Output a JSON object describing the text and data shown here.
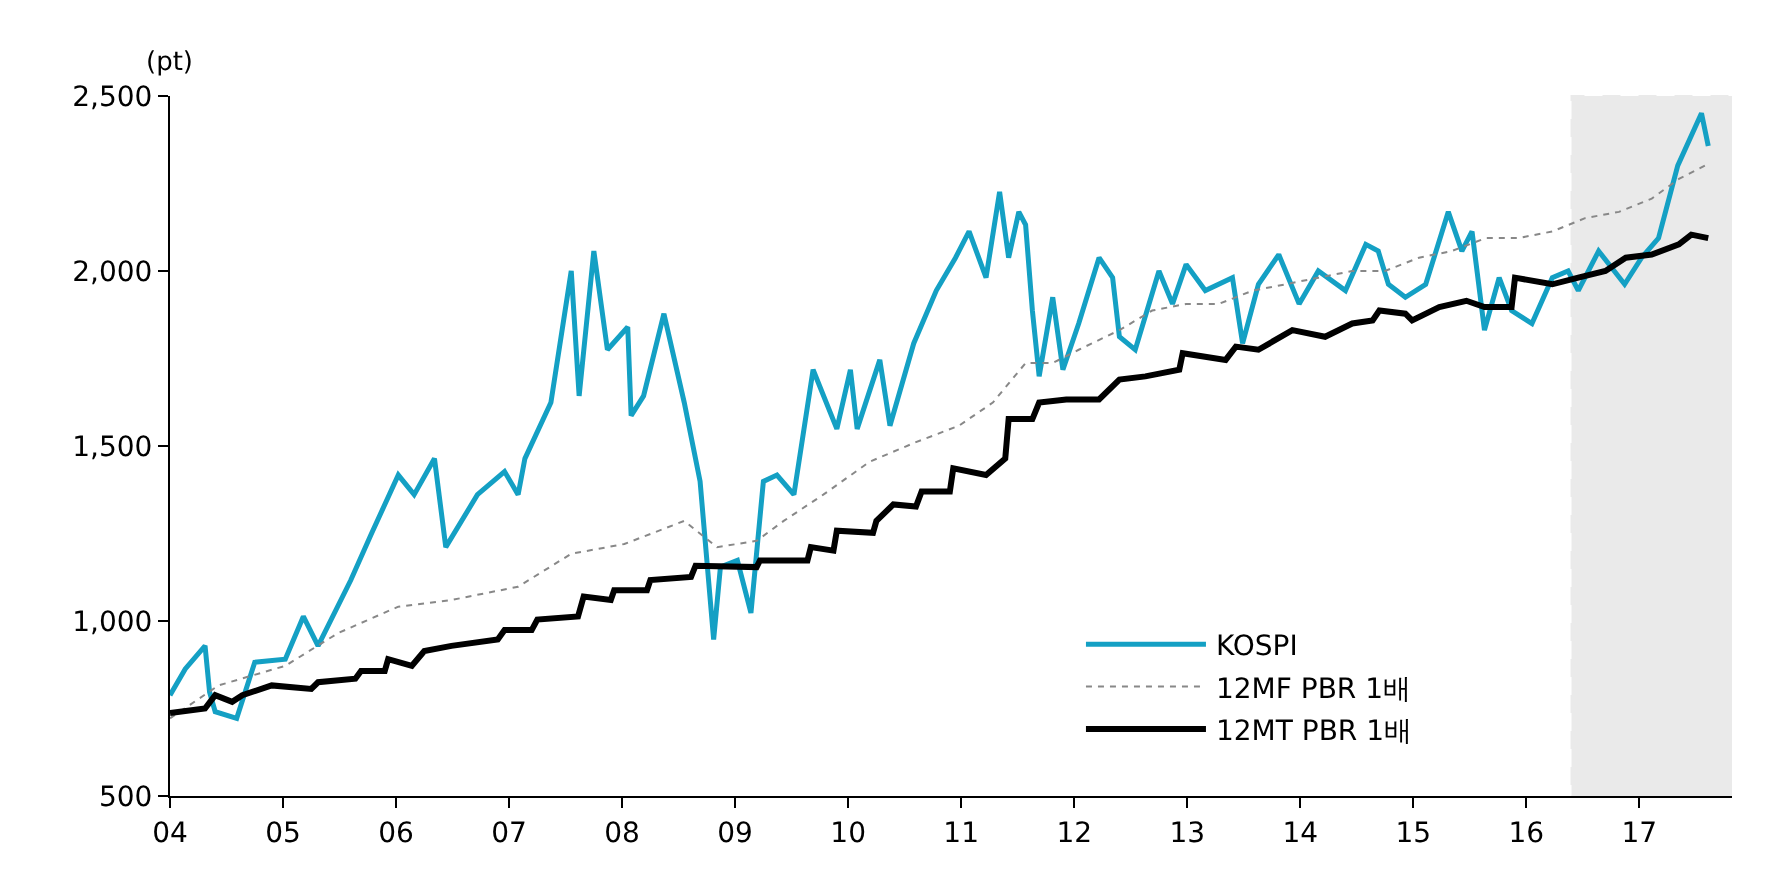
{
  "chart_data": {
    "type": "line",
    "ylabel": "(pt)",
    "xlim": [
      2004,
      2017.82
    ],
    "xticks": [
      {
        "value": 2004,
        "label": "04"
      },
      {
        "value": 2005,
        "label": "05"
      },
      {
        "value": 2006,
        "label": "06"
      },
      {
        "value": 2007,
        "label": "07"
      },
      {
        "value": 2008,
        "label": "08"
      },
      {
        "value": 2009,
        "label": "09"
      },
      {
        "value": 2010,
        "label": "10"
      },
      {
        "value": 2011,
        "label": "11"
      },
      {
        "value": 2012,
        "label": "12"
      },
      {
        "value": 2013,
        "label": "13"
      },
      {
        "value": 2014,
        "label": "14"
      },
      {
        "value": 2015,
        "label": "15"
      },
      {
        "value": 2016,
        "label": "16"
      },
      {
        "value": 2017,
        "label": "17"
      }
    ],
    "ylim": [
      500,
      2500
    ],
    "yticks": [
      500,
      {
        "value": 1000,
        "label": "1,000"
      },
      {
        "value": 1500,
        "label": "1,500"
      },
      {
        "value": 2000,
        "label": "2,000"
      },
      {
        "value": 2500,
        "label": "2,500"
      }
    ],
    "grid": false,
    "legend": "bottom right",
    "bands": [
      {
        "axis": "x",
        "from": 2016.4,
        "to": 2017.82,
        "color": "#000000"
      }
    ],
    "series": [
      {
        "name": "KOSPI",
        "color": "#14a0c4",
        "line_style": "solid",
        "x": [
          2004.0,
          2004.135,
          2004.31,
          2004.35,
          2004.4,
          2004.59,
          2004.75,
          2005.02,
          2005.18,
          2005.31,
          2005.6,
          2005.78,
          2006.02,
          2006.16,
          2006.34,
          2006.44,
          2006.72,
          2006.96,
          2007.08,
          2007.14,
          2007.37,
          2007.55,
          2007.62,
          2007.75,
          2007.87,
          2008.05,
          2008.08,
          2008.19,
          2008.37,
          2008.55,
          2008.69,
          2008.81,
          2008.87,
          2009.02,
          2009.14,
          2009.25,
          2009.37,
          2009.52,
          2009.69,
          2009.9,
          2010.02,
          2010.08,
          2010.28,
          2010.37,
          2010.58,
          2010.78,
          2010.95,
          2011.07,
          2011.22,
          2011.34,
          2011.42,
          2011.51,
          2011.57,
          2011.63,
          2011.69,
          2011.81,
          2011.9,
          2012.04,
          2012.22,
          2012.34,
          2012.4,
          2012.54,
          2012.75,
          2012.87,
          2012.99,
          2013.16,
          2013.4,
          2013.49,
          2013.63,
          2013.81,
          2013.99,
          2014.16,
          2014.4,
          2014.58,
          2014.69,
          2014.78,
          2014.93,
          2015.11,
          2015.31,
          2015.43,
          2015.52,
          2015.63,
          2015.76,
          2015.87,
          2016.05,
          2016.23,
          2016.37,
          2016.46,
          2016.64,
          2016.87,
          2017.02,
          2017.17,
          2017.34,
          2017.55,
          2017.61
        ],
        "values": [
          788,
          863,
          929,
          797,
          741,
          722,
          882,
          891,
          1013,
          929,
          1117,
          1248,
          1417,
          1361,
          1464,
          1211,
          1361,
          1427,
          1361,
          1464,
          1624,
          2000,
          1643,
          2057,
          1775,
          1840,
          1587,
          1643,
          1878,
          1624,
          1399,
          947,
          1154,
          1173,
          1023,
          1399,
          1417,
          1361,
          1718,
          1549,
          1718,
          1549,
          1746,
          1558,
          1793,
          1944,
          2038,
          2113,
          1981,
          2226,
          2038,
          2169,
          2132,
          1887,
          1699,
          1925,
          1718,
          1850,
          2038,
          1981,
          1812,
          1775,
          2000,
          1906,
          2019,
          1944,
          1981,
          1793,
          1962,
          2047,
          1906,
          2000,
          1944,
          2076,
          2057,
          1962,
          1925,
          1962,
          2169,
          2057,
          2113,
          1831,
          1981,
          1887,
          1850,
          1981,
          2000,
          1944,
          2057,
          1962,
          2038,
          2094,
          2301,
          2451,
          2357
        ]
      },
      {
        "name": "12MF PBR 1배",
        "color": "#888888",
        "line_style": "dotted",
        "x": [
          2004.0,
          2004.43,
          2005.02,
          2005.49,
          2006.02,
          2006.49,
          2007.08,
          2007.55,
          2008.02,
          2008.55,
          2008.84,
          2009.19,
          2009.43,
          2009.78,
          2010.19,
          2010.6,
          2010.98,
          2011.28,
          2011.57,
          2011.81,
          2012.04,
          2012.4,
          2012.69,
          2012.99,
          2013.28,
          2013.58,
          2013.87,
          2014.16,
          2014.46,
          2014.75,
          2015.05,
          2015.34,
          2015.64,
          2015.93,
          2016.23,
          2016.52,
          2016.82,
          2017.11,
          2017.35,
          2017.58
        ],
        "values": [
          722,
          816,
          872,
          966,
          1041,
          1060,
          1098,
          1192,
          1220,
          1286,
          1211,
          1229,
          1286,
          1361,
          1455,
          1511,
          1558,
          1624,
          1737,
          1737,
          1775,
          1831,
          1887,
          1906,
          1906,
          1944,
          1962,
          1981,
          2000,
          2000,
          2038,
          2057,
          2094,
          2094,
          2113,
          2151,
          2169,
          2207,
          2263,
          2301
        ]
      },
      {
        "name": "12MT PBR 1배",
        "color": "#000000",
        "line_style": "solid",
        "x": [
          2004.0,
          2004.31,
          2004.4,
          2004.55,
          2004.64,
          2004.9,
          2005.25,
          2005.31,
          2005.64,
          2005.69,
          2005.9,
          2005.93,
          2006.14,
          2006.25,
          2006.49,
          2006.9,
          2006.96,
          2007.2,
          2007.25,
          2007.61,
          2007.66,
          2007.9,
          2007.93,
          2008.22,
          2008.25,
          2008.61,
          2008.65,
          2009.19,
          2009.22,
          2009.64,
          2009.67,
          2009.87,
          2009.9,
          2010.22,
          2010.25,
          2010.4,
          2010.6,
          2010.65,
          2010.9,
          2010.93,
          2011.22,
          2011.39,
          2011.42,
          2011.63,
          2011.69,
          2011.93,
          2012.22,
          2012.4,
          2012.63,
          2012.93,
          2012.96,
          2013.34,
          2013.43,
          2013.63,
          2013.93,
          2014.22,
          2014.46,
          2014.64,
          2014.7,
          2014.93,
          2014.99,
          2015.23,
          2015.47,
          2015.63,
          2015.87,
          2015.9,
          2016.23,
          2016.46,
          2016.7,
          2016.88,
          2017.11,
          2017.35,
          2017.46,
          2017.61
        ],
        "values": [
          737,
          750,
          788,
          769,
          788,
          816,
          806,
          825,
          835,
          857,
          857,
          891,
          872,
          914,
          929,
          947,
          974,
          974,
          1004,
          1013,
          1070,
          1060,
          1088,
          1088,
          1117,
          1126,
          1158,
          1154,
          1173,
          1173,
          1211,
          1201,
          1258,
          1252,
          1286,
          1333,
          1327,
          1370,
          1370,
          1436,
          1417,
          1464,
          1577,
          1577,
          1624,
          1633,
          1633,
          1690,
          1699,
          1718,
          1765,
          1746,
          1784,
          1775,
          1831,
          1812,
          1850,
          1859,
          1887,
          1878,
          1859,
          1897,
          1915,
          1897,
          1897,
          1981,
          1962,
          1981,
          2000,
          2038,
          2047,
          2076,
          2104,
          2094
        ]
      }
    ]
  }
}
